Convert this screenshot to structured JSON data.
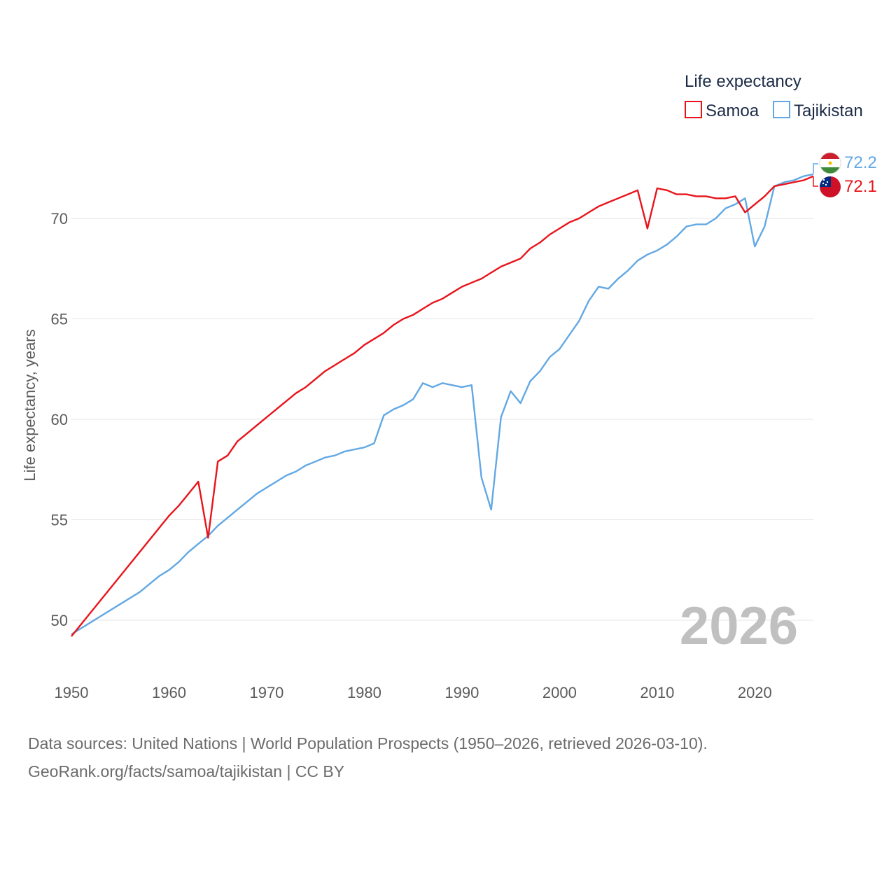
{
  "chart_data": {
    "type": "line",
    "title": "",
    "legend_title": "Life expectancy",
    "ylabel": "Life expectancy, years",
    "xlabel": "",
    "xlim": [
      1950,
      2026
    ],
    "ylim": [
      48.3,
      72.9
    ],
    "x_ticks": [
      1950,
      1960,
      1970,
      1980,
      1990,
      2000,
      2010,
      2020
    ],
    "y_ticks": [
      50,
      55,
      60,
      65,
      70
    ],
    "year_watermark": "2026",
    "legend_position": "top-right",
    "series": [
      {
        "name": "Samoa",
        "color": "#e8141b",
        "end_label": "72.1",
        "flag_icon": "samoa-flag-icon",
        "points": [
          [
            1950,
            49.2
          ],
          [
            1960,
            55.2
          ],
          [
            1961,
            55.7
          ],
          [
            1962,
            56.3
          ],
          [
            1963,
            56.9
          ],
          [
            1964,
            54.1
          ],
          [
            1965,
            57.9
          ],
          [
            1966,
            58.2
          ],
          [
            1967,
            58.9
          ],
          [
            1968,
            59.3
          ],
          [
            1969,
            59.7
          ],
          [
            1970,
            60.1
          ],
          [
            1971,
            60.5
          ],
          [
            1972,
            60.9
          ],
          [
            1973,
            61.3
          ],
          [
            1974,
            61.6
          ],
          [
            1975,
            62.0
          ],
          [
            1976,
            62.4
          ],
          [
            1977,
            62.7
          ],
          [
            1978,
            63.0
          ],
          [
            1979,
            63.3
          ],
          [
            1980,
            63.7
          ],
          [
            1981,
            64.0
          ],
          [
            1982,
            64.3
          ],
          [
            1983,
            64.7
          ],
          [
            1984,
            65.0
          ],
          [
            1985,
            65.2
          ],
          [
            1986,
            65.5
          ],
          [
            1987,
            65.8
          ],
          [
            1988,
            66.0
          ],
          [
            1989,
            66.3
          ],
          [
            1990,
            66.6
          ],
          [
            1991,
            66.8
          ],
          [
            1992,
            67.0
          ],
          [
            1993,
            67.3
          ],
          [
            1994,
            67.6
          ],
          [
            1995,
            67.8
          ],
          [
            1996,
            68.0
          ],
          [
            1997,
            68.5
          ],
          [
            1998,
            68.8
          ],
          [
            1999,
            69.2
          ],
          [
            2000,
            69.5
          ],
          [
            2001,
            69.8
          ],
          [
            2002,
            70.0
          ],
          [
            2003,
            70.3
          ],
          [
            2004,
            70.6
          ],
          [
            2005,
            70.8
          ],
          [
            2006,
            71.0
          ],
          [
            2007,
            71.2
          ],
          [
            2008,
            71.4
          ],
          [
            2009,
            69.5
          ],
          [
            2010,
            71.5
          ],
          [
            2011,
            71.4
          ],
          [
            2012,
            71.2
          ],
          [
            2013,
            71.2
          ],
          [
            2014,
            71.1
          ],
          [
            2015,
            71.1
          ],
          [
            2016,
            71.0
          ],
          [
            2017,
            71.0
          ],
          [
            2018,
            71.1
          ],
          [
            2019,
            70.3
          ],
          [
            2020,
            70.7
          ],
          [
            2021,
            71.1
          ],
          [
            2022,
            71.6
          ],
          [
            2023,
            71.7
          ],
          [
            2024,
            71.8
          ],
          [
            2025,
            71.9
          ],
          [
            2026,
            72.1
          ]
        ]
      },
      {
        "name": "Tajikistan",
        "color": "#62a8e4",
        "end_label": "72.2",
        "flag_icon": "tajikistan-flag-icon",
        "points": [
          [
            1950,
            49.3
          ],
          [
            1957,
            51.4
          ],
          [
            1958,
            51.8
          ],
          [
            1959,
            52.2
          ],
          [
            1960,
            52.5
          ],
          [
            1961,
            52.9
          ],
          [
            1962,
            53.4
          ],
          [
            1963,
            53.8
          ],
          [
            1964,
            54.2
          ],
          [
            1965,
            54.7
          ],
          [
            1966,
            55.1
          ],
          [
            1967,
            55.5
          ],
          [
            1968,
            55.9
          ],
          [
            1969,
            56.3
          ],
          [
            1970,
            56.6
          ],
          [
            1971,
            56.9
          ],
          [
            1972,
            57.2
          ],
          [
            1973,
            57.4
          ],
          [
            1974,
            57.7
          ],
          [
            1975,
            57.9
          ],
          [
            1976,
            58.1
          ],
          [
            1977,
            58.2
          ],
          [
            1978,
            58.4
          ],
          [
            1979,
            58.5
          ],
          [
            1980,
            58.6
          ],
          [
            1981,
            58.8
          ],
          [
            1982,
            60.2
          ],
          [
            1983,
            60.5
          ],
          [
            1984,
            60.7
          ],
          [
            1985,
            61.0
          ],
          [
            1986,
            61.8
          ],
          [
            1987,
            61.6
          ],
          [
            1988,
            61.8
          ],
          [
            1989,
            61.7
          ],
          [
            1990,
            61.6
          ],
          [
            1991,
            61.7
          ],
          [
            1992,
            57.1
          ],
          [
            1993,
            55.5
          ],
          [
            1994,
            60.1
          ],
          [
            1995,
            61.4
          ],
          [
            1996,
            60.8
          ],
          [
            1997,
            61.9
          ],
          [
            1998,
            62.4
          ],
          [
            1999,
            63.1
          ],
          [
            2000,
            63.5
          ],
          [
            2001,
            64.2
          ],
          [
            2002,
            64.9
          ],
          [
            2003,
            65.9
          ],
          [
            2004,
            66.6
          ],
          [
            2005,
            66.5
          ],
          [
            2006,
            67.0
          ],
          [
            2007,
            67.4
          ],
          [
            2008,
            67.9
          ],
          [
            2009,
            68.2
          ],
          [
            2010,
            68.4
          ],
          [
            2011,
            68.7
          ],
          [
            2012,
            69.1
          ],
          [
            2013,
            69.6
          ],
          [
            2014,
            69.7
          ],
          [
            2015,
            69.7
          ],
          [
            2016,
            70.0
          ],
          [
            2017,
            70.5
          ],
          [
            2018,
            70.7
          ],
          [
            2019,
            71.0
          ],
          [
            2020,
            68.6
          ],
          [
            2021,
            69.6
          ],
          [
            2022,
            71.6
          ],
          [
            2023,
            71.8
          ],
          [
            2024,
            71.9
          ],
          [
            2025,
            72.1
          ],
          [
            2026,
            72.2
          ]
        ]
      }
    ]
  },
  "footer": {
    "line1": "Data sources: United Nations | World Population Prospects (1950–2026, retrieved 2026-03-10).",
    "line2": "GeoRank.org/facts/samoa/tajikistan | CC BY"
  }
}
